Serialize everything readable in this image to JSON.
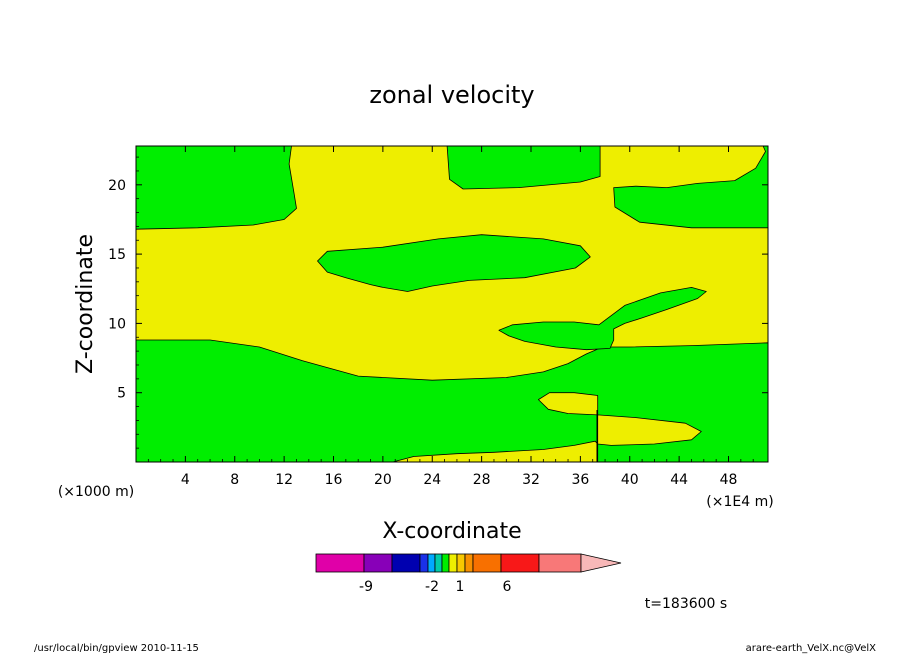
{
  "chart_data": {
    "type": "contour",
    "title": "zonal velocity",
    "xlabel": "X-coordinate",
    "ylabel": "Z-coordinate",
    "x_unit_left": "(×1000 m)",
    "x_unit_right": "(×1E4 m)",
    "xlim": [
      0,
      51.2
    ],
    "ylim": [
      0,
      22.8
    ],
    "x_ticks": [
      4,
      8,
      12,
      16,
      20,
      24,
      28,
      32,
      36,
      40,
      44,
      48
    ],
    "y_ticks": [
      5,
      10,
      15,
      20
    ],
    "background_level": "0 to 1",
    "regions": [
      {
        "level": "-1 to 0",
        "color": "#00ee00",
        "points": [
          [
            0,
            22.8
          ],
          [
            12.6,
            22.8
          ],
          [
            12.4,
            21.5
          ],
          [
            12.8,
            19.4
          ],
          [
            13,
            18.3
          ],
          [
            12,
            17.5
          ],
          [
            9.5,
            17.1
          ],
          [
            5,
            16.9
          ],
          [
            0,
            16.8
          ]
        ]
      },
      {
        "level": "-1 to 0",
        "color": "#00ee00",
        "points": [
          [
            25.2,
            22.8
          ],
          [
            37.6,
            22.8
          ],
          [
            37.6,
            20.6
          ],
          [
            36,
            20.2
          ],
          [
            31,
            19.8
          ],
          [
            26.5,
            19.7
          ],
          [
            25.4,
            20.4
          ]
        ]
      },
      {
        "level": "-1 to 0",
        "color": "#00ee00",
        "points": [
          [
            50.8,
            22.8
          ],
          [
            51,
            22.4
          ],
          [
            50.2,
            21.2
          ],
          [
            48.5,
            20.3
          ],
          [
            45.5,
            20.1
          ],
          [
            43,
            19.8
          ],
          [
            40.5,
            19.9
          ],
          [
            38.7,
            19.8
          ],
          [
            38.8,
            18.4
          ],
          [
            40.8,
            17.3
          ],
          [
            45,
            16.9
          ],
          [
            51.2,
            16.9
          ],
          [
            51.2,
            22.8
          ]
        ]
      },
      {
        "level": "-1 to 0",
        "color": "#00ee00",
        "points": [
          [
            14.7,
            14.5
          ],
          [
            15.5,
            15.2
          ],
          [
            20,
            15.5
          ],
          [
            24.5,
            16.1
          ],
          [
            28,
            16.4
          ],
          [
            33,
            16.1
          ],
          [
            36,
            15.6
          ],
          [
            36.8,
            14.8
          ],
          [
            35.6,
            14
          ],
          [
            31.5,
            13.3
          ],
          [
            27,
            13.1
          ],
          [
            24,
            12.7
          ],
          [
            22,
            12.3
          ],
          [
            20,
            12.6
          ],
          [
            19,
            12.8
          ],
          [
            17,
            13.3
          ],
          [
            15.5,
            13.7
          ]
        ]
      },
      {
        "level": "-1 to 0",
        "color": "#00ee00",
        "points": [
          [
            0,
            8.8
          ],
          [
            6,
            8.8
          ],
          [
            10,
            8.3
          ],
          [
            13.5,
            7.3
          ],
          [
            18,
            6.2
          ],
          [
            24,
            5.9
          ],
          [
            30,
            6.1
          ],
          [
            33,
            6.5
          ],
          [
            35,
            7.1
          ],
          [
            36.5,
            7.8
          ],
          [
            37.8,
            8.3
          ],
          [
            40,
            8.3
          ],
          [
            45,
            8.4
          ],
          [
            51.2,
            8.6
          ],
          [
            51.2,
            0
          ],
          [
            0,
            0
          ]
        ]
      },
      {
        "level": "-1 to 0",
        "color": "#00ee00",
        "points": [
          [
            29.4,
            9.5
          ],
          [
            30.5,
            9.9
          ],
          [
            33,
            10.1
          ],
          [
            35.5,
            10.1
          ],
          [
            37.5,
            9.9
          ],
          [
            39.6,
            11.3
          ],
          [
            42.5,
            12.2
          ],
          [
            45,
            12.6
          ],
          [
            46.2,
            12.3
          ],
          [
            45.5,
            11.8
          ],
          [
            43,
            11
          ],
          [
            41,
            10.4
          ],
          [
            39.6,
            10
          ],
          [
            38.7,
            9.6
          ],
          [
            38.7,
            8.8
          ],
          [
            38.4,
            8.2
          ],
          [
            36.5,
            8.1
          ],
          [
            34,
            8.3
          ],
          [
            31.5,
            8.7
          ],
          [
            30.2,
            9.1
          ]
        ]
      }
    ],
    "overlay_regions": [
      {
        "level": "0 to 1",
        "color": "#eeee00",
        "points": [
          [
            32.6,
            4.5
          ],
          [
            33.5,
            5
          ],
          [
            35.5,
            5
          ],
          [
            37.4,
            4.8
          ],
          [
            37.4,
            3.4
          ],
          [
            35,
            3.5
          ],
          [
            33.4,
            3.8
          ]
        ]
      },
      {
        "level": "0 to 1",
        "color": "#eeee00",
        "points": [
          [
            37.4,
            3.4
          ],
          [
            40.5,
            3.2
          ],
          [
            44.5,
            2.8
          ],
          [
            45.8,
            2.2
          ],
          [
            45,
            1.6
          ],
          [
            42,
            1.3
          ],
          [
            38.5,
            1.2
          ],
          [
            37.4,
            1.3
          ]
        ]
      },
      {
        "level": "0 to 1",
        "color": "#eeee00",
        "points": [
          [
            20.8,
            0
          ],
          [
            22.5,
            0.4
          ],
          [
            26,
            0.6
          ],
          [
            29,
            0.7
          ],
          [
            33,
            0.9
          ],
          [
            35.5,
            1.2
          ],
          [
            37.2,
            1.5
          ],
          [
            37.4,
            1.3
          ],
          [
            37.4,
            0
          ],
          [
            20.8,
            0
          ]
        ]
      }
    ],
    "colorbar": {
      "colors": [
        "#e000a8",
        "#8800b8",
        "#0000b0",
        "#1a30e8",
        "#00aaff",
        "#00ccaa",
        "#00ee00",
        "#eeee00",
        "#f8c800",
        "#f89000",
        "#f87000",
        "#f81818",
        "#f87878",
        "#f8b8b8"
      ],
      "tick_labels": [
        "-9",
        "-2",
        "1",
        "6"
      ]
    },
    "time_label": "t=183600 s"
  },
  "footer": {
    "left": "/usr/local/bin/gpview  2010-11-15",
    "right": "arare-earth_VelX.nc@VelX"
  }
}
